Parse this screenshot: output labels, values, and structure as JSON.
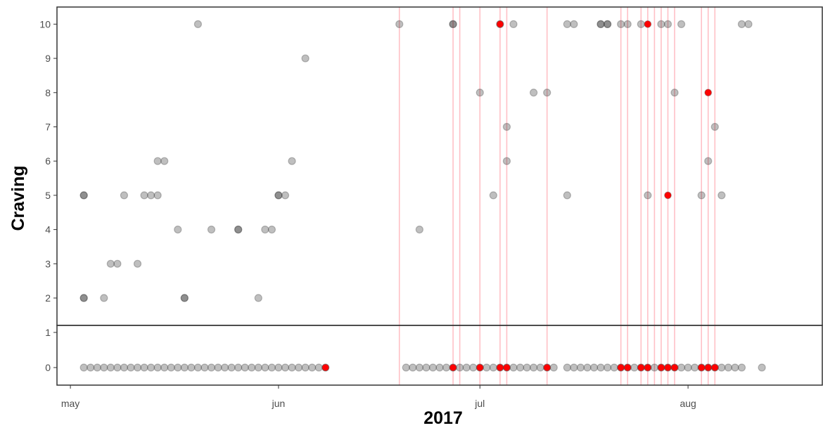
{
  "chart_data": {
    "type": "scatter",
    "title": "",
    "xlabel": "2017",
    "ylabel": "Craving",
    "x_ticks": [
      {
        "date": "2017-05-01",
        "label": "may"
      },
      {
        "date": "2017-06-01",
        "label": "jun"
      },
      {
        "date": "2017-07-01",
        "label": "jul"
      },
      {
        "date": "2017-08-01",
        "label": "aug"
      }
    ],
    "xlim": [
      "2017-04-29",
      "2017-08-21"
    ],
    "panels": [
      {
        "name": "high",
        "ylim": [
          1.2,
          10.5
        ],
        "y_ticks": [
          2,
          3,
          4,
          5,
          6,
          7,
          8,
          9,
          10
        ]
      },
      {
        "name": "low",
        "ylim": [
          -0.5,
          1.2
        ],
        "y_ticks": [
          0,
          1
        ]
      }
    ],
    "grid": false,
    "colors": {
      "point": "#000000",
      "highlight": "#ff0000",
      "event_line": "#ffc0c6",
      "axis": "#333333"
    },
    "event_dates": [
      "2017-06-19",
      "2017-06-27",
      "2017-06-28",
      "2017-07-01",
      "2017-07-04",
      "2017-07-05",
      "2017-07-11",
      "2017-07-22",
      "2017-07-23",
      "2017-07-25",
      "2017-07-26",
      "2017-07-27",
      "2017-07-28",
      "2017-07-29",
      "2017-07-30",
      "2017-08-03",
      "2017-08-04",
      "2017-08-05"
    ],
    "series": [
      {
        "values": [
          {
            "x": "2017-05-03",
            "y": 5
          },
          {
            "x": "2017-05-03",
            "y": 5
          },
          {
            "x": "2017-05-03",
            "y": 2
          },
          {
            "x": "2017-05-03",
            "y": 2
          },
          {
            "x": "2017-05-06",
            "y": 2
          },
          {
            "x": "2017-05-07",
            "y": 3
          },
          {
            "x": "2017-05-08",
            "y": 3
          },
          {
            "x": "2017-05-09",
            "y": 5
          },
          {
            "x": "2017-05-11",
            "y": 3
          },
          {
            "x": "2017-05-12",
            "y": 5
          },
          {
            "x": "2017-05-13",
            "y": 5
          },
          {
            "x": "2017-05-14",
            "y": 6
          },
          {
            "x": "2017-05-14",
            "y": 5
          },
          {
            "x": "2017-05-15",
            "y": 6
          },
          {
            "x": "2017-05-17",
            "y": 4
          },
          {
            "x": "2017-05-18",
            "y": 2
          },
          {
            "x": "2017-05-18",
            "y": 2
          },
          {
            "x": "2017-05-20",
            "y": 10
          },
          {
            "x": "2017-05-22",
            "y": 4
          },
          {
            "x": "2017-05-26",
            "y": 4
          },
          {
            "x": "2017-05-26",
            "y": 4
          },
          {
            "x": "2017-05-29",
            "y": 2
          },
          {
            "x": "2017-05-30",
            "y": 4
          },
          {
            "x": "2017-05-31",
            "y": 4
          },
          {
            "x": "2017-06-01",
            "y": 5
          },
          {
            "x": "2017-06-01",
            "y": 5
          },
          {
            "x": "2017-06-02",
            "y": 5
          },
          {
            "x": "2017-06-03",
            "y": 6
          },
          {
            "x": "2017-06-05",
            "y": 9
          },
          {
            "x": "2017-06-19",
            "y": 10
          },
          {
            "x": "2017-06-22",
            "y": 4
          },
          {
            "x": "2017-06-27",
            "y": 10
          },
          {
            "x": "2017-06-27",
            "y": 10
          },
          {
            "x": "2017-07-01",
            "y": 8
          },
          {
            "x": "2017-07-03",
            "y": 5
          },
          {
            "x": "2017-07-04",
            "y": 10
          },
          {
            "x": "2017-07-05",
            "y": 6
          },
          {
            "x": "2017-07-05",
            "y": 7
          },
          {
            "x": "2017-07-06",
            "y": 10
          },
          {
            "x": "2017-07-09",
            "y": 8
          },
          {
            "x": "2017-07-11",
            "y": 8
          },
          {
            "x": "2017-07-14",
            "y": 10
          },
          {
            "x": "2017-07-14",
            "y": 5
          },
          {
            "x": "2017-07-15",
            "y": 10
          },
          {
            "x": "2017-07-19",
            "y": 10
          },
          {
            "x": "2017-07-19",
            "y": 10
          },
          {
            "x": "2017-07-20",
            "y": 10
          },
          {
            "x": "2017-07-20",
            "y": 10
          },
          {
            "x": "2017-07-22",
            "y": 10
          },
          {
            "x": "2017-07-23",
            "y": 10
          },
          {
            "x": "2017-07-25",
            "y": 10
          },
          {
            "x": "2017-07-26",
            "y": 5
          },
          {
            "x": "2017-07-28",
            "y": 10
          },
          {
            "x": "2017-07-29",
            "y": 10
          },
          {
            "x": "2017-07-30",
            "y": 8
          },
          {
            "x": "2017-07-31",
            "y": 10
          },
          {
            "x": "2017-08-03",
            "y": 5
          },
          {
            "x": "2017-08-04",
            "y": 6
          },
          {
            "x": "2017-08-05",
            "y": 7
          },
          {
            "x": "2017-08-06",
            "y": 5
          },
          {
            "x": "2017-08-09",
            "y": 10
          },
          {
            "x": "2017-08-10",
            "y": 10
          },
          {
            "x": "2017-05-03",
            "y": 0
          },
          {
            "x": "2017-05-04",
            "y": 0
          },
          {
            "x": "2017-05-05",
            "y": 0
          },
          {
            "x": "2017-05-06",
            "y": 0
          },
          {
            "x": "2017-05-07",
            "y": 0
          },
          {
            "x": "2017-05-08",
            "y": 0
          },
          {
            "x": "2017-05-09",
            "y": 0
          },
          {
            "x": "2017-05-10",
            "y": 0
          },
          {
            "x": "2017-05-11",
            "y": 0
          },
          {
            "x": "2017-05-12",
            "y": 0
          },
          {
            "x": "2017-05-13",
            "y": 0
          },
          {
            "x": "2017-05-14",
            "y": 0
          },
          {
            "x": "2017-05-15",
            "y": 0
          },
          {
            "x": "2017-05-16",
            "y": 0
          },
          {
            "x": "2017-05-17",
            "y": 0
          },
          {
            "x": "2017-05-18",
            "y": 0
          },
          {
            "x": "2017-05-19",
            "y": 0
          },
          {
            "x": "2017-05-20",
            "y": 0
          },
          {
            "x": "2017-05-21",
            "y": 0
          },
          {
            "x": "2017-05-22",
            "y": 0
          },
          {
            "x": "2017-05-23",
            "y": 0
          },
          {
            "x": "2017-05-24",
            "y": 0
          },
          {
            "x": "2017-05-25",
            "y": 0
          },
          {
            "x": "2017-05-26",
            "y": 0
          },
          {
            "x": "2017-05-27",
            "y": 0
          },
          {
            "x": "2017-05-28",
            "y": 0
          },
          {
            "x": "2017-05-29",
            "y": 0
          },
          {
            "x": "2017-05-30",
            "y": 0
          },
          {
            "x": "2017-05-31",
            "y": 0
          },
          {
            "x": "2017-06-01",
            "y": 0
          },
          {
            "x": "2017-06-02",
            "y": 0
          },
          {
            "x": "2017-06-03",
            "y": 0
          },
          {
            "x": "2017-06-04",
            "y": 0
          },
          {
            "x": "2017-06-05",
            "y": 0
          },
          {
            "x": "2017-06-06",
            "y": 0
          },
          {
            "x": "2017-06-07",
            "y": 0
          },
          {
            "x": "2017-06-08",
            "y": 0
          },
          {
            "x": "2017-06-20",
            "y": 0
          },
          {
            "x": "2017-06-21",
            "y": 0
          },
          {
            "x": "2017-06-22",
            "y": 0
          },
          {
            "x": "2017-06-23",
            "y": 0
          },
          {
            "x": "2017-06-24",
            "y": 0
          },
          {
            "x": "2017-06-25",
            "y": 0
          },
          {
            "x": "2017-06-26",
            "y": 0
          },
          {
            "x": "2017-06-27",
            "y": 0
          },
          {
            "x": "2017-06-28",
            "y": 0
          },
          {
            "x": "2017-06-29",
            "y": 0
          },
          {
            "x": "2017-06-30",
            "y": 0
          },
          {
            "x": "2017-07-01",
            "y": 0
          },
          {
            "x": "2017-07-02",
            "y": 0
          },
          {
            "x": "2017-07-03",
            "y": 0
          },
          {
            "x": "2017-07-04",
            "y": 0
          },
          {
            "x": "2017-07-05",
            "y": 0
          },
          {
            "x": "2017-07-06",
            "y": 0
          },
          {
            "x": "2017-07-07",
            "y": 0
          },
          {
            "x": "2017-07-08",
            "y": 0
          },
          {
            "x": "2017-07-09",
            "y": 0
          },
          {
            "x": "2017-07-10",
            "y": 0
          },
          {
            "x": "2017-07-11",
            "y": 0
          },
          {
            "x": "2017-07-12",
            "y": 0
          },
          {
            "x": "2017-07-14",
            "y": 0
          },
          {
            "x": "2017-07-15",
            "y": 0
          },
          {
            "x": "2017-07-16",
            "y": 0
          },
          {
            "x": "2017-07-17",
            "y": 0
          },
          {
            "x": "2017-07-18",
            "y": 0
          },
          {
            "x": "2017-07-19",
            "y": 0
          },
          {
            "x": "2017-07-20",
            "y": 0
          },
          {
            "x": "2017-07-21",
            "y": 0
          },
          {
            "x": "2017-07-22",
            "y": 0
          },
          {
            "x": "2017-07-23",
            "y": 0
          },
          {
            "x": "2017-07-24",
            "y": 0
          },
          {
            "x": "2017-07-25",
            "y": 0
          },
          {
            "x": "2017-07-26",
            "y": 0
          },
          {
            "x": "2017-07-27",
            "y": 0
          },
          {
            "x": "2017-07-28",
            "y": 0
          },
          {
            "x": "2017-07-29",
            "y": 0
          },
          {
            "x": "2017-07-30",
            "y": 0
          },
          {
            "x": "2017-07-31",
            "y": 0
          },
          {
            "x": "2017-08-01",
            "y": 0
          },
          {
            "x": "2017-08-02",
            "y": 0
          },
          {
            "x": "2017-08-03",
            "y": 0
          },
          {
            "x": "2017-08-04",
            "y": 0
          },
          {
            "x": "2017-08-05",
            "y": 0
          },
          {
            "x": "2017-08-06",
            "y": 0
          },
          {
            "x": "2017-08-07",
            "y": 0
          },
          {
            "x": "2017-08-08",
            "y": 0
          },
          {
            "x": "2017-08-09",
            "y": 0
          },
          {
            "x": "2017-08-12",
            "y": 0
          }
        ]
      },
      {
        "values": [
          {
            "x": "2017-07-04",
            "y": 10
          },
          {
            "x": "2017-07-26",
            "y": 10
          },
          {
            "x": "2017-07-29",
            "y": 5
          },
          {
            "x": "2017-08-04",
            "y": 8
          },
          {
            "x": "2017-06-08",
            "y": 0
          },
          {
            "x": "2017-06-27",
            "y": 0
          },
          {
            "x": "2017-07-01",
            "y": 0
          },
          {
            "x": "2017-07-04",
            "y": 0
          },
          {
            "x": "2017-07-05",
            "y": 0
          },
          {
            "x": "2017-07-11",
            "y": 0
          },
          {
            "x": "2017-07-22",
            "y": 0
          },
          {
            "x": "2017-07-23",
            "y": 0
          },
          {
            "x": "2017-07-25",
            "y": 0
          },
          {
            "x": "2017-07-26",
            "y": 0
          },
          {
            "x": "2017-07-28",
            "y": 0
          },
          {
            "x": "2017-07-29",
            "y": 0
          },
          {
            "x": "2017-07-30",
            "y": 0
          },
          {
            "x": "2017-08-03",
            "y": 0
          },
          {
            "x": "2017-08-04",
            "y": 0
          },
          {
            "x": "2017-08-05",
            "y": 0
          }
        ]
      }
    ]
  }
}
